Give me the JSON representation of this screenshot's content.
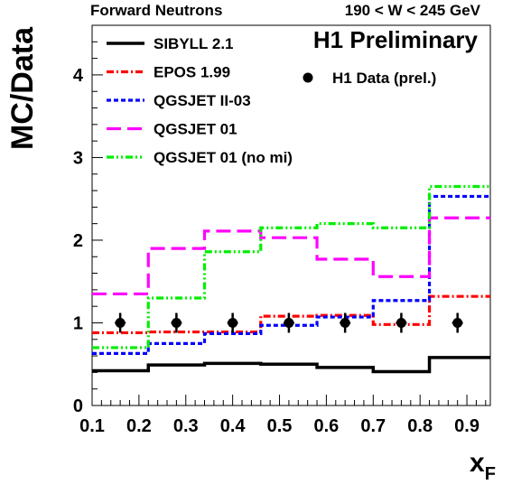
{
  "header": {
    "left": "Forward Neutrons",
    "right": "190 < W < 245 GeV"
  },
  "chart_data": {
    "type": "line",
    "title": "H1 Preliminary",
    "xlabel": "x",
    "xlabel_sub": "F",
    "ylabel": "MC/Data",
    "xlim": [
      0.1,
      0.95
    ],
    "ylim": [
      0,
      4.6
    ],
    "x_ticks": [
      "0.1",
      "0.2",
      "0.3",
      "0.4",
      "0.5",
      "0.6",
      "0.7",
      "0.8",
      "0.9"
    ],
    "y_ticks": [
      "0",
      "1",
      "2",
      "3",
      "4"
    ],
    "bin_edges": [
      0.1,
      0.22,
      0.34,
      0.46,
      0.58,
      0.7,
      0.82,
      0.95
    ],
    "series": [
      {
        "name": "SIBYLL 2.1",
        "color": "#000000",
        "dash": "solid",
        "values": [
          0.42,
          0.49,
          0.51,
          0.5,
          0.46,
          0.41,
          0.58
        ]
      },
      {
        "name": "EPOS 1.99",
        "color": "#ff0000",
        "dash": "dashdot",
        "values": [
          0.88,
          0.89,
          0.89,
          1.08,
          1.09,
          0.98,
          1.32
        ]
      },
      {
        "name": "QGSJET II-03",
        "color": "#0000ff",
        "dash": "dot",
        "values": [
          0.63,
          0.75,
          0.87,
          0.97,
          1.07,
          1.27,
          2.53
        ]
      },
      {
        "name": "QGSJET 01",
        "color": "#ff00ff",
        "dash": "longdash",
        "values": [
          1.35,
          1.9,
          2.11,
          2.03,
          1.77,
          1.56,
          2.27
        ]
      },
      {
        "name": "QGSJET 01 (no mi)",
        "color": "#00ee00",
        "dash": "dashdotdot",
        "values": [
          0.7,
          1.3,
          1.86,
          2.15,
          2.2,
          2.15,
          2.65
        ]
      }
    ],
    "data_points": {
      "name": "H1 Data (prel.)",
      "x": [
        0.16,
        0.28,
        0.4,
        0.52,
        0.64,
        0.76,
        0.88
      ],
      "y": [
        1,
        1,
        1,
        1,
        1,
        1,
        1
      ],
      "yerr": [
        0.12,
        0.12,
        0.12,
        0.12,
        0.12,
        0.12,
        0.12
      ]
    },
    "legend_position": "top-left",
    "grid": false
  }
}
